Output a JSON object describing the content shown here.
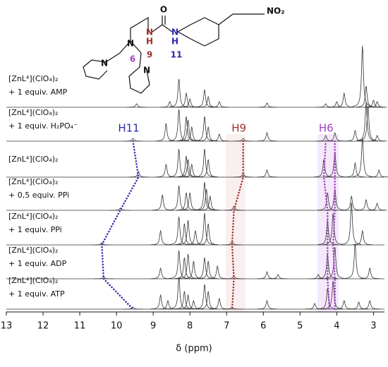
{
  "chart_data": {
    "type": "nmr",
    "xlabel": "δ (ppm)",
    "xlim": [
      13,
      2.7
    ],
    "xticks": [
      13,
      12,
      11,
      10,
      9,
      8,
      7,
      6,
      5,
      4,
      3
    ],
    "series": [
      {
        "label": [
          "[ZnL⁴](ClO₄)₂",
          "+ 1 equiv. AMP"
        ],
        "color": "#333333",
        "x": [
          9.45,
          8.55,
          8.3,
          8.1,
          8.0,
          7.6,
          7.5,
          7.2,
          5.9,
          4.3,
          4.0,
          3.8,
          3.3,
          3.2,
          3.0,
          2.9
        ],
        "values": [
          5,
          8,
          40,
          20,
          12,
          25,
          15,
          8,
          6,
          5,
          8,
          20,
          87,
          30,
          10,
          8
        ]
      },
      {
        "label": [
          "[ZnL⁴](ClO₄)₂",
          "+ 1 equiv. H₂PO₄⁻"
        ],
        "color": "#333333",
        "x": [
          9.55,
          8.65,
          8.3,
          8.1,
          8.05,
          7.95,
          7.6,
          7.5,
          7.2,
          6.55,
          5.9,
          4.3,
          4.05,
          3.5,
          3.2,
          3.15,
          2.9
        ],
        "values": [
          4,
          25,
          45,
          35,
          30,
          20,
          35,
          20,
          10,
          4,
          12,
          8,
          12,
          15,
          55,
          50,
          8
        ]
      },
      {
        "label": [
          "[ZnL⁴](ClO₄)₂"
        ],
        "color": "#333333",
        "x": [
          9.4,
          8.65,
          8.3,
          8.1,
          8.05,
          7.95,
          7.6,
          7.5,
          6.55,
          5.9,
          4.35,
          4.05,
          3.5,
          3.3,
          2.85
        ],
        "values": [
          8,
          18,
          40,
          30,
          25,
          18,
          40,
          25,
          6,
          10,
          25,
          35,
          20,
          55,
          10
        ]
      },
      {
        "label": [
          "[ZnL⁴](ClO₄)₂",
          "+ 0,5 equiv. PPi"
        ],
        "color": "#333333",
        "x": [
          9.9,
          8.75,
          8.3,
          8.1,
          8.0,
          7.6,
          7.55,
          7.45,
          6.8,
          4.25,
          4.05,
          3.6,
          3.2,
          2.9
        ],
        "values": [
          3,
          22,
          35,
          25,
          25,
          40,
          30,
          20,
          6,
          25,
          30,
          20,
          15,
          10
        ]
      },
      {
        "label": [
          "[ZnL⁴](ClO₄)₂",
          "+ 1 equiv. PPi"
        ],
        "color": "#333333",
        "x": [
          10.4,
          8.8,
          8.3,
          8.15,
          8.05,
          7.85,
          7.6,
          7.5,
          6.85,
          4.25,
          4.1,
          3.6,
          3.3
        ],
        "values": [
          3,
          20,
          40,
          30,
          35,
          20,
          45,
          30,
          5,
          35,
          45,
          60,
          20
        ]
      },
      {
        "label": [
          "[ZnL⁴](ClO₄)₂",
          "+ 1 equiv. ADP"
        ],
        "color": "#333333",
        "x": [
          10.35,
          8.8,
          8.3,
          8.15,
          8.05,
          7.9,
          7.6,
          7.5,
          7.25,
          6.8,
          5.9,
          5.6,
          4.5,
          4.25,
          4.05,
          3.5,
          3.1
        ],
        "values": [
          3,
          15,
          40,
          30,
          35,
          25,
          30,
          25,
          18,
          4,
          10,
          6,
          6,
          35,
          45,
          50,
          15
        ]
      },
      {
        "label": [
          "[ZnL⁴](ClO₄)₂",
          "+ 1 equiv. ATP"
        ],
        "color": "#333333",
        "x": [
          9.55,
          8.8,
          8.6,
          8.3,
          8.15,
          8.05,
          7.9,
          7.6,
          7.5,
          7.2,
          6.85,
          5.9,
          4.6,
          4.25,
          4.1,
          3.8,
          3.4,
          3.1
        ],
        "values": [
          3,
          20,
          12,
          45,
          25,
          20,
          12,
          35,
          25,
          15,
          3,
          12,
          8,
          30,
          40,
          12,
          10,
          12
        ]
      }
    ],
    "tracks": [
      {
        "name": "H11",
        "color": "#2a2ab0",
        "lines": [
          [
            9.55,
            9.4,
            9.9,
            10.4,
            10.35,
            9.55
          ]
        ]
      },
      {
        "name": "H9",
        "color": "#a0302a",
        "lines": [
          [
            6.55,
            6.55,
            6.8,
            6.85,
            6.8,
            6.85
          ]
        ]
      },
      {
        "name": "H6",
        "color": "#a040c0",
        "lines": [
          [
            4.3,
            4.35,
            4.25,
            4.25,
            4.25,
            4.2
          ],
          [
            4.05,
            4.05,
            4.05,
            4.1,
            4.05,
            4.05
          ]
        ]
      }
    ]
  },
  "structure": {
    "labels": [
      "O",
      "N",
      "H",
      "N",
      "H",
      "NO₂",
      "N",
      "9",
      "11",
      "6",
      "N",
      "N"
    ]
  }
}
